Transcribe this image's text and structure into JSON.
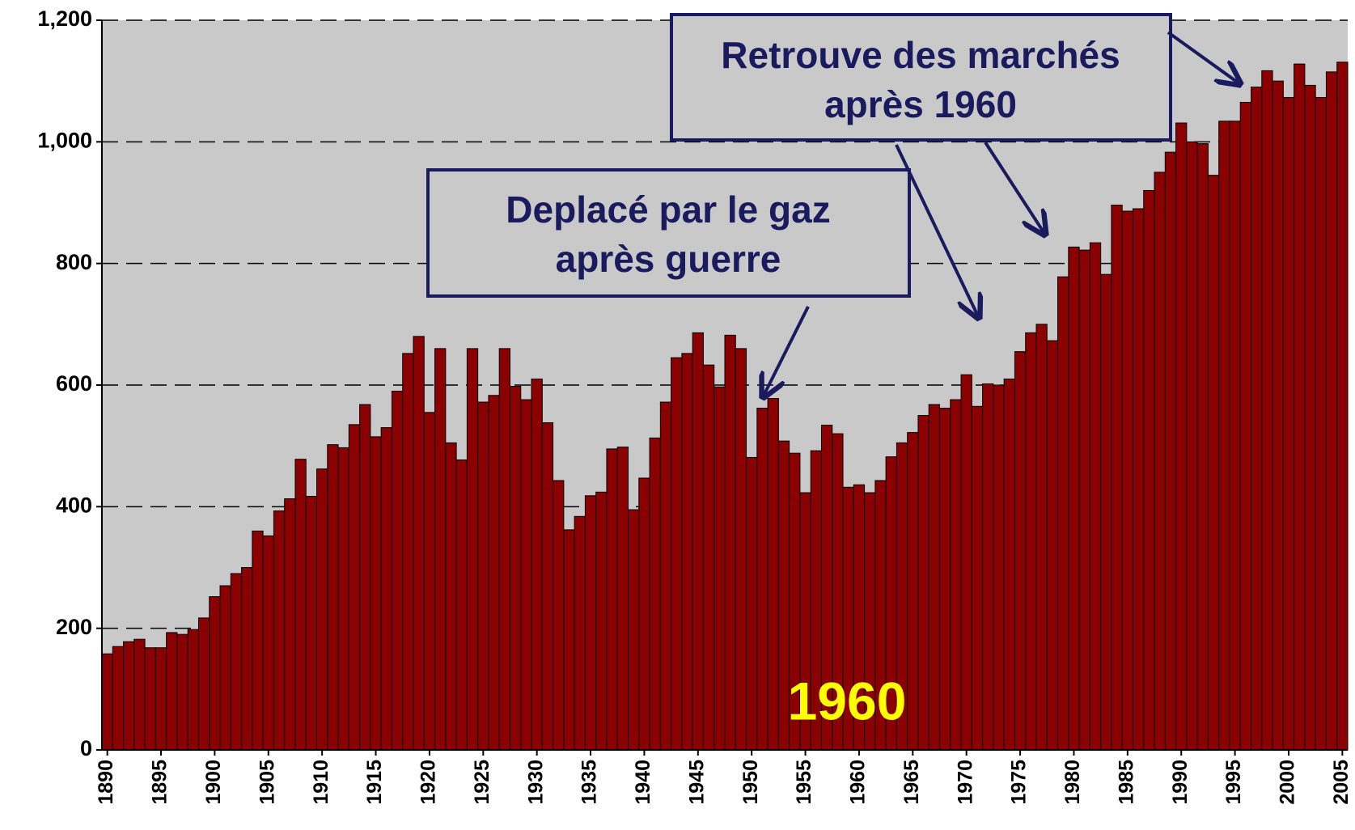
{
  "chart_data": {
    "type": "bar",
    "x": [
      1890,
      1891,
      1892,
      1893,
      1894,
      1895,
      1896,
      1897,
      1898,
      1899,
      1900,
      1901,
      1902,
      1903,
      1904,
      1905,
      1906,
      1907,
      1908,
      1909,
      1910,
      1911,
      1912,
      1913,
      1914,
      1915,
      1916,
      1917,
      1918,
      1919,
      1920,
      1921,
      1922,
      1923,
      1924,
      1925,
      1926,
      1927,
      1928,
      1929,
      1930,
      1931,
      1932,
      1933,
      1934,
      1935,
      1936,
      1937,
      1938,
      1939,
      1940,
      1941,
      1942,
      1943,
      1944,
      1945,
      1946,
      1947,
      1948,
      1949,
      1950,
      1951,
      1952,
      1953,
      1954,
      1955,
      1956,
      1957,
      1958,
      1959,
      1960,
      1961,
      1962,
      1963,
      1964,
      1965,
      1966,
      1967,
      1968,
      1969,
      1970,
      1971,
      1972,
      1973,
      1974,
      1975,
      1976,
      1977,
      1978,
      1979,
      1980,
      1981,
      1982,
      1983,
      1984,
      1985,
      1986,
      1987,
      1988,
      1989,
      1990,
      1991,
      1992,
      1993,
      1994,
      1995,
      1996,
      1997,
      1998,
      1999,
      2000,
      2001,
      2002,
      2003,
      2004,
      2005
    ],
    "values": [
      158,
      170,
      178,
      182,
      168,
      168,
      193,
      190,
      198,
      217,
      252,
      270,
      290,
      300,
      360,
      352,
      393,
      413,
      478,
      417,
      462,
      502,
      497,
      535,
      568,
      515,
      530,
      590,
      652,
      680,
      555,
      660,
      505,
      477,
      660,
      572,
      583,
      660,
      598,
      576,
      610,
      538,
      443,
      362,
      384,
      418,
      424,
      495,
      498,
      395,
      447,
      513,
      572,
      645,
      652,
      686,
      633,
      597,
      682,
      660,
      481,
      562,
      578,
      508,
      488,
      423,
      492,
      534,
      520,
      432,
      436,
      423,
      443,
      482,
      505,
      522,
      550,
      568,
      562,
      576,
      617,
      565,
      602,
      600,
      610,
      655,
      686,
      700,
      673,
      778,
      827,
      822,
      834,
      782,
      896,
      886,
      890,
      920,
      950,
      983,
      1031,
      1000,
      997,
      945,
      1034,
      1034,
      1065,
      1090,
      1117,
      1100,
      1073,
      1128,
      1093,
      1073,
      1115,
      1131
    ],
    "color": "#8b0000",
    "xlim": [
      1889.5,
      2005.5
    ],
    "xticks": [
      1890,
      1895,
      1900,
      1905,
      1910,
      1915,
      1920,
      1925,
      1930,
      1935,
      1940,
      1945,
      1950,
      1955,
      1960,
      1965,
      1970,
      1975,
      1980,
      1985,
      1990,
      1995,
      2000,
      2005
    ],
    "ylim": [
      0,
      1200
    ],
    "yticks": [
      0,
      200,
      400,
      600,
      800,
      {
        "value": 1000,
        "label": "1,000"
      },
      {
        "value": 1200,
        "label": "1,200"
      }
    ],
    "grid": true,
    "annotations": [
      {
        "lines": [
          "Retrouve des marchés",
          "après 1960"
        ]
      },
      {
        "lines": [
          "Deplacé par le gaz",
          "après guerre"
        ]
      },
      {
        "text": "1960"
      }
    ]
  }
}
